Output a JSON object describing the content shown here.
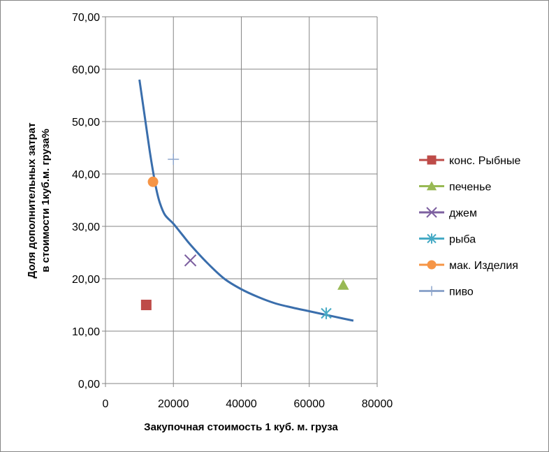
{
  "chart_data": {
    "type": "scatter",
    "xlabel": "Закупочная  стоимость 1 куб. м. груза",
    "ylabel_lines": [
      "Доля дополнительных затрат",
      "в стоимости 1куб.м. груза%"
    ],
    "xlim": [
      0,
      80000
    ],
    "ylim": [
      0,
      70
    ],
    "x_ticks": [
      0,
      20000,
      40000,
      60000,
      80000
    ],
    "x_tick_labels": [
      "0",
      "20000",
      "40000",
      "60000",
      "80000"
    ],
    "y_ticks": [
      0,
      10,
      20,
      30,
      40,
      50,
      60,
      70
    ],
    "y_tick_labels": [
      "0,00",
      "10,00",
      "20,00",
      "30,00",
      "40,00",
      "50,00",
      "60,00",
      "70,00"
    ],
    "grid": true,
    "legend_position": "right",
    "series": [
      {
        "name": "конс. Рыбные",
        "marker": "square",
        "color": "#BE4B48",
        "points": [
          [
            12000,
            15.0
          ]
        ]
      },
      {
        "name": "печенье",
        "marker": "triangle",
        "color": "#98B954",
        "points": [
          [
            70000,
            18.8
          ]
        ]
      },
      {
        "name": "джем",
        "marker": "x",
        "color": "#7D60A0",
        "points": [
          [
            25000,
            23.5
          ]
        ]
      },
      {
        "name": "рыба",
        "marker": "star",
        "color": "#46AAC5",
        "points": [
          [
            65000,
            13.4
          ]
        ]
      },
      {
        "name": "мак. Изделия",
        "marker": "circle",
        "color": "#F69546",
        "points": [
          [
            14000,
            38.5
          ]
        ]
      },
      {
        "name": "пиво",
        "marker": "plus",
        "color": "#8EA5CB",
        "points": [
          [
            20000,
            42.8
          ]
        ]
      }
    ],
    "trend_line": {
      "color": "#3A6EAC",
      "points": [
        [
          10000,
          58.0
        ],
        [
          11000,
          53.5
        ],
        [
          12000,
          49.0
        ],
        [
          13000,
          44.5
        ],
        [
          14000,
          40.5
        ],
        [
          15000,
          37.0
        ],
        [
          16000,
          34.5
        ],
        [
          17500,
          32.2
        ],
        [
          20000,
          30.5
        ],
        [
          22500,
          28.5
        ],
        [
          25000,
          26.5
        ],
        [
          30000,
          23.0
        ],
        [
          35000,
          20.0
        ],
        [
          40000,
          18.0
        ],
        [
          45000,
          16.5
        ],
        [
          50000,
          15.3
        ],
        [
          55000,
          14.5
        ],
        [
          60000,
          13.8
        ],
        [
          65000,
          13.1
        ],
        [
          70000,
          12.4
        ],
        [
          73000,
          12.0
        ]
      ]
    }
  }
}
